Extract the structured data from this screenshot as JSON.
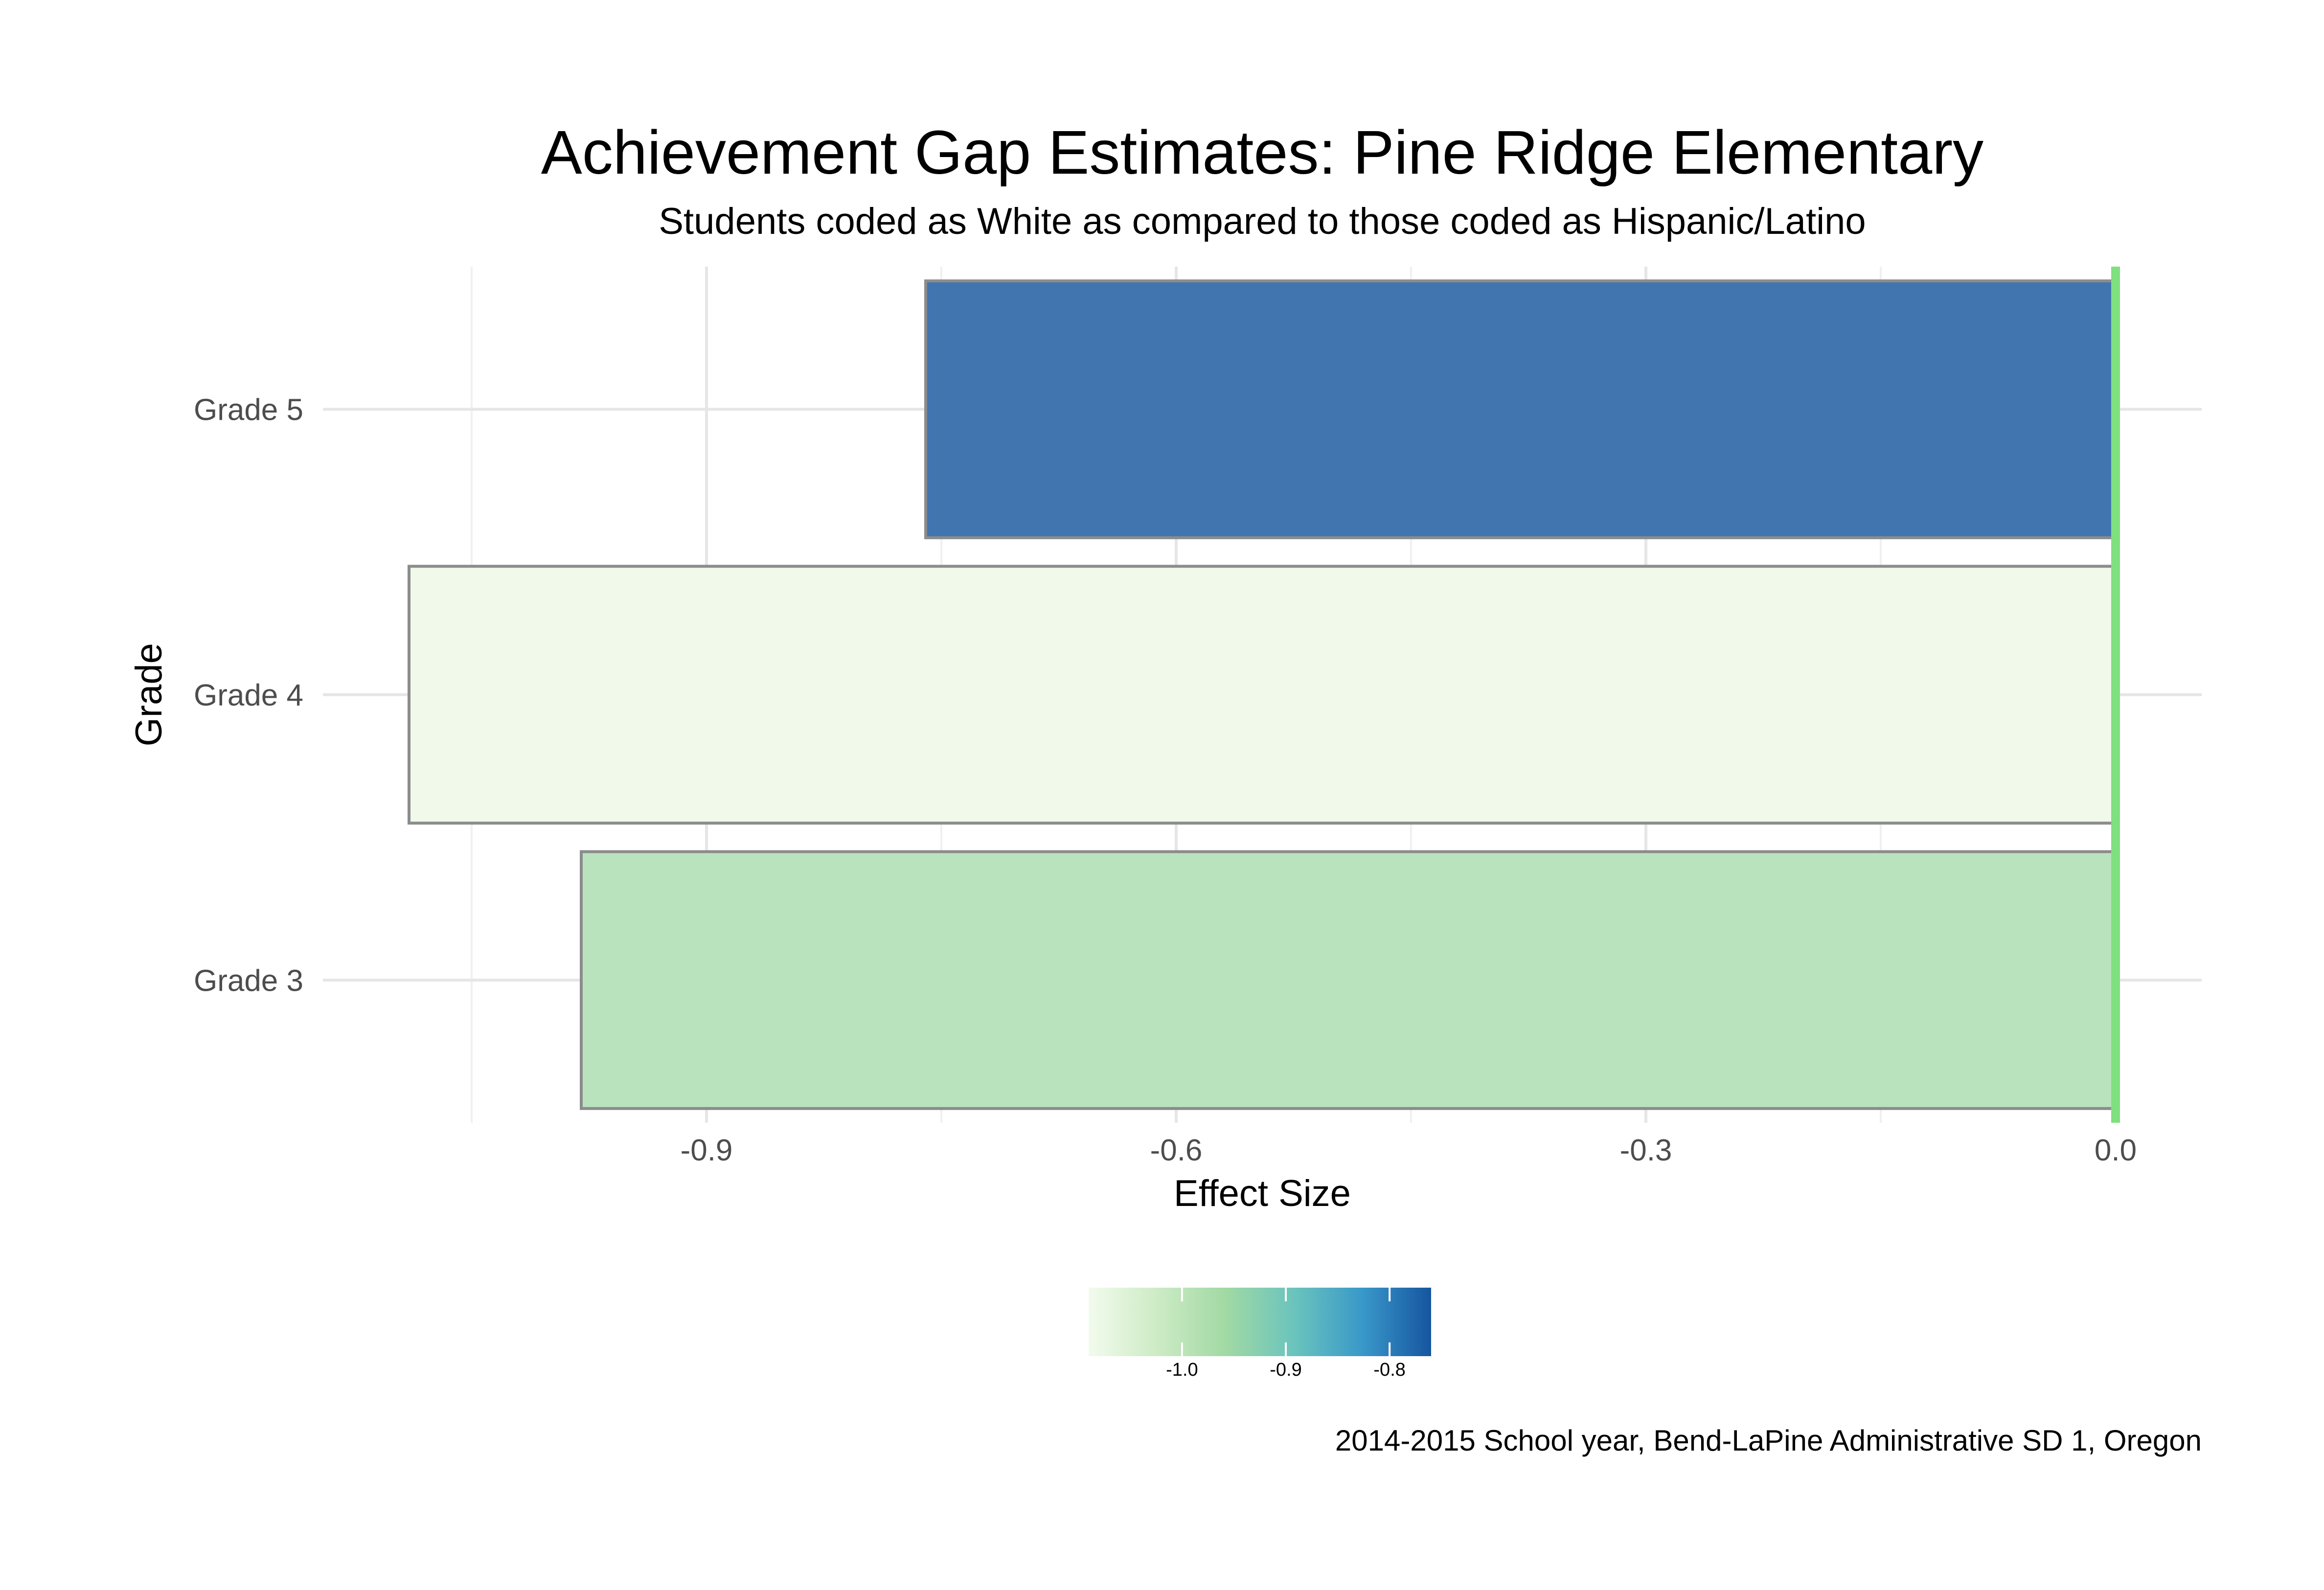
{
  "chart_data": {
    "type": "bar",
    "orientation": "horizontal",
    "title": "Achievement Gap Estimates: Pine Ridge Elementary",
    "subtitle": "Students coded as White as compared to those coded as Hispanic/Latino",
    "caption": "2014-2015 School year, Bend-LaPine Administrative SD 1, Oregon",
    "xlabel": "Effect Size",
    "ylabel": "Grade",
    "categories": [
      "Grade 3",
      "Grade 4",
      "Grade 5"
    ],
    "values": [
      -0.98,
      -1.09,
      -0.76
    ],
    "xlim": [
      -1.145,
      0.055
    ],
    "xticks": [
      -0.9,
      -0.6,
      -0.3,
      0.0
    ],
    "xtick_labels": [
      "-0.9",
      "-0.6",
      "-0.3",
      "0.0"
    ],
    "x_minor_gridlines": [
      -1.05,
      -0.75,
      -0.45,
      -0.15
    ],
    "grid": true,
    "reference_line": {
      "x": 0.0,
      "color": "#7fe07f"
    },
    "legend": {
      "placement": "bottom",
      "type": "colorbar",
      "range": [
        -1.09,
        -0.76
      ],
      "ticks": [
        -1.0,
        -0.9,
        -0.8
      ],
      "tick_labels": [
        "-1.0",
        "-0.9",
        "-0.8"
      ],
      "colors": [
        "#f2fbed",
        "#cdebc5",
        "#a1d9a4",
        "#6ac4bd",
        "#3998c9",
        "#1655a0"
      ]
    },
    "bar_colors": [
      "#b9e3bc",
      "#f0f9ea",
      "#4075b0"
    ],
    "bar_border_color": "#8c8c8c"
  }
}
